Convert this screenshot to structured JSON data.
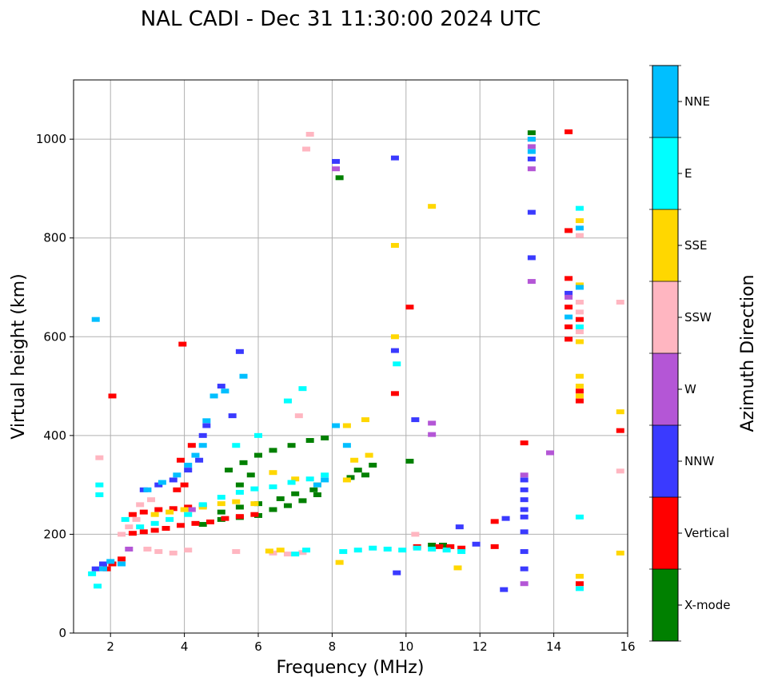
{
  "chart_data": {
    "type": "scatter",
    "title": "NAL CADI - Dec 31 11:30:00 2024 UTC",
    "xlabel": "Frequency (MHz)",
    "ylabel": "Virtual height (km)",
    "xlim": [
      1,
      16
    ],
    "ylim": [
      0,
      1120
    ],
    "xticks": [
      2,
      4,
      6,
      8,
      10,
      12,
      14,
      16
    ],
    "yticks": [
      0,
      200,
      400,
      600,
      800,
      1000
    ],
    "grid": true,
    "colorbar": {
      "label": "Azimuth Direction",
      "categories": [
        "X-mode",
        "Vertical",
        "NNW",
        "W",
        "SSW",
        "SSE",
        "E",
        "NNE"
      ],
      "colors": [
        "#008000",
        "#ff0000",
        "#3a3aff",
        "#b456d6",
        "#ffb6c1",
        "#ffd700",
        "#00ffff",
        "#00bfff"
      ]
    },
    "series": [
      {
        "name": "X-mode",
        "color": "#008000",
        "points": [
          [
            4.5,
            220
          ],
          [
            5,
            230
          ],
          [
            5.5,
            234
          ],
          [
            6,
            238
          ],
          [
            6.4,
            250
          ],
          [
            6.8,
            258
          ],
          [
            7.2,
            268
          ],
          [
            7.6,
            280
          ],
          [
            5,
            245
          ],
          [
            5.5,
            255
          ],
          [
            6,
            262
          ],
          [
            6.6,
            272
          ],
          [
            7,
            282
          ],
          [
            7.5,
            290
          ],
          [
            5.2,
            330
          ],
          [
            5.6,
            345
          ],
          [
            6,
            360
          ],
          [
            6.4,
            370
          ],
          [
            6.9,
            380
          ],
          [
            7.4,
            390
          ],
          [
            7.8,
            395
          ],
          [
            8.5,
            315
          ],
          [
            8.7,
            330
          ],
          [
            8.9,
            320
          ],
          [
            9.1,
            340
          ],
          [
            8.2,
            922
          ],
          [
            10.1,
            348
          ],
          [
            10.7,
            178
          ],
          [
            11,
            178
          ],
          [
            13.4,
            1013
          ],
          [
            5.5,
            300
          ],
          [
            5.8,
            320
          ]
        ]
      },
      {
        "name": "Vertical",
        "color": "#ff0000",
        "points": [
          [
            1.9,
            130
          ],
          [
            2.05,
            140
          ],
          [
            2.3,
            150
          ],
          [
            2.6,
            202
          ],
          [
            2.9,
            205
          ],
          [
            3.2,
            208
          ],
          [
            3.5,
            212
          ],
          [
            3.9,
            218
          ],
          [
            4.3,
            222
          ],
          [
            4.7,
            225
          ],
          [
            5.1,
            232
          ],
          [
            5.5,
            236
          ],
          [
            5.9,
            240
          ],
          [
            2.6,
            240
          ],
          [
            2.9,
            245
          ],
          [
            3.3,
            250
          ],
          [
            3.7,
            252
          ],
          [
            4.1,
            255
          ],
          [
            4.5,
            258
          ],
          [
            3.8,
            290
          ],
          [
            4.0,
            300
          ],
          [
            3.9,
            350
          ],
          [
            4.2,
            380
          ],
          [
            3.95,
            585
          ],
          [
            2.05,
            480
          ],
          [
            9.7,
            485
          ],
          [
            10.1,
            660
          ],
          [
            10.3,
            175
          ],
          [
            10.9,
            175
          ],
          [
            11.2,
            175
          ],
          [
            11.5,
            172
          ],
          [
            12.4,
            175
          ],
          [
            12.4,
            226
          ],
          [
            13.2,
            385
          ],
          [
            14.4,
            1015
          ],
          [
            14.4,
            815
          ],
          [
            14.4,
            718
          ],
          [
            14.4,
            660
          ],
          [
            14.4,
            620
          ],
          [
            14.4,
            595
          ],
          [
            14.7,
            635
          ],
          [
            14.7,
            490
          ],
          [
            14.7,
            470
          ],
          [
            14.7,
            100
          ],
          [
            15.8,
            410
          ]
        ]
      },
      {
        "name": "NNW",
        "color": "#3a3aff",
        "points": [
          [
            1.6,
            130
          ],
          [
            1.8,
            140
          ],
          [
            2.9,
            290
          ],
          [
            3.3,
            300
          ],
          [
            3.7,
            310
          ],
          [
            4.1,
            330
          ],
          [
            4.4,
            350
          ],
          [
            4.5,
            400
          ],
          [
            4.6,
            420
          ],
          [
            5.0,
            500
          ],
          [
            5.3,
            440
          ],
          [
            5.5,
            570
          ],
          [
            8.1,
            955
          ],
          [
            9.7,
            962
          ],
          [
            9.7,
            572
          ],
          [
            10.25,
            432
          ],
          [
            11.45,
            215
          ],
          [
            11.9,
            180
          ],
          [
            12.7,
            232
          ],
          [
            12.65,
            88
          ],
          [
            13.2,
            310
          ],
          [
            13.2,
            290
          ],
          [
            13.2,
            270
          ],
          [
            13.2,
            250
          ],
          [
            13.2,
            235
          ],
          [
            13.2,
            205
          ],
          [
            13.2,
            165
          ],
          [
            13.2,
            130
          ],
          [
            13.4,
            960
          ],
          [
            13.4,
            852
          ],
          [
            13.4,
            760
          ],
          [
            14.4,
            688
          ],
          [
            9.75,
            122
          ]
        ]
      },
      {
        "name": "W",
        "color": "#b456d6",
        "points": [
          [
            8.1,
            940
          ],
          [
            10.7,
            425
          ],
          [
            10.7,
            402
          ],
          [
            13.2,
            320
          ],
          [
            13.2,
            100
          ],
          [
            13.4,
            1000
          ],
          [
            13.4,
            985
          ],
          [
            13.4,
            940
          ],
          [
            13.4,
            712
          ],
          [
            13.9,
            365
          ],
          [
            14.4,
            680
          ],
          [
            4.2,
            250
          ],
          [
            2.5,
            170
          ]
        ]
      },
      {
        "name": "SSW",
        "color": "#ffb6c1",
        "points": [
          [
            2.3,
            200
          ],
          [
            2.5,
            215
          ],
          [
            2.7,
            230
          ],
          [
            3,
            170
          ],
          [
            3.3,
            165
          ],
          [
            3.7,
            162
          ],
          [
            4.1,
            168
          ],
          [
            5.4,
            165
          ],
          [
            6.4,
            162
          ],
          [
            6.8,
            160
          ],
          [
            7.2,
            163
          ],
          [
            7.4,
            1010
          ],
          [
            7.3,
            980
          ],
          [
            7.1,
            440
          ],
          [
            10.25,
            200
          ],
          [
            14.7,
            805
          ],
          [
            14.7,
            670
          ],
          [
            14.7,
            650
          ],
          [
            14.7,
            610
          ],
          [
            15.8,
            328
          ],
          [
            15.8,
            670
          ],
          [
            1.7,
            355
          ],
          [
            2.8,
            260
          ],
          [
            3.1,
            270
          ]
        ]
      },
      {
        "name": "SSE",
        "color": "#ffd700",
        "points": [
          [
            3.2,
            240
          ],
          [
            3.6,
            245
          ],
          [
            4,
            250
          ],
          [
            4.5,
            255
          ],
          [
            5,
            262
          ],
          [
            5.4,
            266
          ],
          [
            5.9,
            262
          ],
          [
            6.4,
            325
          ],
          [
            7,
            312
          ],
          [
            7.6,
            300
          ],
          [
            8.4,
            420
          ],
          [
            8.4,
            310
          ],
          [
            8.6,
            350
          ],
          [
            8.9,
            432
          ],
          [
            9.0,
            360
          ],
          [
            8.2,
            143
          ],
          [
            9.7,
            785
          ],
          [
            9.7,
            600
          ],
          [
            10.7,
            864
          ],
          [
            11.4,
            132
          ],
          [
            14.7,
            835
          ],
          [
            14.7,
            705
          ],
          [
            14.7,
            590
          ],
          [
            14.7,
            520
          ],
          [
            14.7,
            500
          ],
          [
            14.7,
            480
          ],
          [
            14.7,
            115
          ],
          [
            15.8,
            448
          ],
          [
            15.8,
            162
          ],
          [
            6.3,
            166
          ],
          [
            6.6,
            168
          ]
        ]
      },
      {
        "name": "E",
        "color": "#00ffff",
        "points": [
          [
            1.5,
            120
          ],
          [
            1.65,
            95
          ],
          [
            1.7,
            300
          ],
          [
            1.7,
            280
          ],
          [
            2.4,
            230
          ],
          [
            2.8,
            215
          ],
          [
            3.2,
            222
          ],
          [
            3.6,
            230
          ],
          [
            4.1,
            240
          ],
          [
            4.5,
            260
          ],
          [
            5,
            275
          ],
          [
            5.5,
            285
          ],
          [
            5.9,
            292
          ],
          [
            6.4,
            296
          ],
          [
            6.9,
            305
          ],
          [
            7.4,
            312
          ],
          [
            7.8,
            320
          ],
          [
            5.4,
            380
          ],
          [
            6,
            400
          ],
          [
            6.8,
            470
          ],
          [
            7.2,
            495
          ],
          [
            8.3,
            165
          ],
          [
            8.7,
            168
          ],
          [
            9.1,
            172
          ],
          [
            9.5,
            170
          ],
          [
            9.9,
            168
          ],
          [
            10.3,
            172
          ],
          [
            10.7,
            170
          ],
          [
            11.1,
            168
          ],
          [
            11.5,
            165
          ],
          [
            9.75,
            545
          ],
          [
            14.7,
            860
          ],
          [
            14.7,
            620
          ],
          [
            14.7,
            235
          ],
          [
            14.7,
            90
          ],
          [
            7,
            160
          ],
          [
            7.3,
            168
          ]
        ]
      },
      {
        "name": "NNE",
        "color": "#00bfff",
        "points": [
          [
            1.6,
            635
          ],
          [
            1.8,
            130
          ],
          [
            2,
            145
          ],
          [
            2.3,
            140
          ],
          [
            3,
            290
          ],
          [
            3.4,
            305
          ],
          [
            3.8,
            320
          ],
          [
            4.1,
            340
          ],
          [
            4.3,
            360
          ],
          [
            4.5,
            380
          ],
          [
            4.6,
            430
          ],
          [
            4.8,
            480
          ],
          [
            5.1,
            490
          ],
          [
            5.6,
            520
          ],
          [
            7.6,
            300
          ],
          [
            7.8,
            310
          ],
          [
            13.4,
            975
          ],
          [
            13.4,
            1000
          ],
          [
            14.4,
            640
          ],
          [
            14.7,
            820
          ],
          [
            14.7,
            700
          ],
          [
            8.1,
            420
          ],
          [
            8.4,
            380
          ]
        ]
      }
    ]
  }
}
